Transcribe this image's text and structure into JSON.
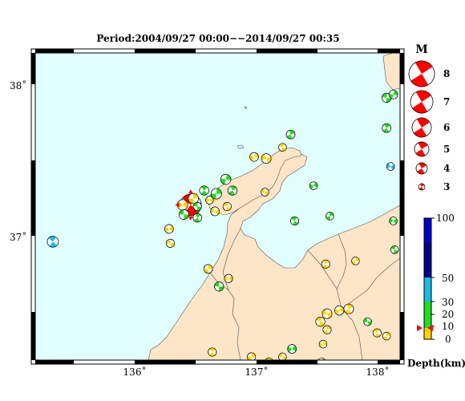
{
  "title": "Period:2004/09/27 00:00−−2014/09/27 00:35",
  "map": {
    "lat_labels": [
      "38˚",
      "37˚"
    ],
    "lon_labels": [
      "136˚",
      "137˚",
      "138˚"
    ],
    "lat_range": [
      36.25,
      38.17
    ],
    "lon_range": [
      135.5,
      138.2
    ]
  },
  "colors": {
    "sea": "#e2ffff",
    "land": "#fde5c7",
    "frame_black": "#000000",
    "frame_white": "#ffffff",
    "mech_red": "#ff0000",
    "depth_yellow": "#ffd400",
    "depth_green": "#22dd22",
    "depth_cyan": "#1fb9e8",
    "depth_blue": "#0000ff",
    "depth_navy": "#000088"
  },
  "legend_magnitude": {
    "header": "M",
    "items": [
      "8",
      "7",
      "6",
      "5",
      "4",
      "3"
    ]
  },
  "legend_depth": {
    "label": "Depth(km)",
    "ticks": [
      "100",
      "50",
      "30",
      "20",
      "10",
      "0"
    ]
  },
  "mechanisms": [
    {
      "lon": 136.65,
      "lat": 37.22,
      "mag": 6.9,
      "color": "red"
    },
    {
      "lon": 136.67,
      "lat": 37.26,
      "mag": 4.5,
      "color": "yellow"
    },
    {
      "lon": 136.59,
      "lat": 37.22,
      "mag": 4.6,
      "color": "yellow"
    },
    {
      "lon": 136.6,
      "lat": 37.16,
      "mag": 4.4,
      "color": "green"
    },
    {
      "lon": 136.75,
      "lat": 37.31,
      "mag": 4.3,
      "color": "green"
    },
    {
      "lon": 136.84,
      "lat": 37.29,
      "mag": 4.6,
      "color": "green"
    },
    {
      "lon": 136.79,
      "lat": 37.25,
      "mag": 4.0,
      "color": "yellow"
    },
    {
      "lon": 136.7,
      "lat": 37.21,
      "mag": 4.1,
      "color": "green"
    },
    {
      "lon": 136.7,
      "lat": 37.14,
      "mag": 4.2,
      "color": "green"
    },
    {
      "lon": 136.91,
      "lat": 37.38,
      "mag": 4.5,
      "color": "green"
    },
    {
      "lon": 136.83,
      "lat": 37.18,
      "mag": 4.2,
      "color": "yellow"
    },
    {
      "lon": 136.92,
      "lat": 37.21,
      "mag": 4.1,
      "color": "yellow"
    },
    {
      "lon": 136.96,
      "lat": 37.31,
      "mag": 4.3,
      "color": "green"
    },
    {
      "lon": 137.12,
      "lat": 37.52,
      "mag": 4.2,
      "color": "yellow"
    },
    {
      "lon": 137.21,
      "lat": 37.51,
      "mag": 4.4,
      "color": "yellow"
    },
    {
      "lon": 137.33,
      "lat": 37.58,
      "mag": 4.0,
      "color": "yellow"
    },
    {
      "lon": 137.39,
      "lat": 37.66,
      "mag": 4.2,
      "color": "green"
    },
    {
      "lon": 137.56,
      "lat": 37.34,
      "mag": 4.0,
      "color": "green"
    },
    {
      "lon": 137.2,
      "lat": 37.3,
      "mag": 4.0,
      "color": "yellow"
    },
    {
      "lon": 137.42,
      "lat": 37.12,
      "mag": 4.1,
      "color": "green"
    },
    {
      "lon": 137.68,
      "lat": 37.15,
      "mag": 4.0,
      "color": "green"
    },
    {
      "lon": 136.49,
      "lat": 37.07,
      "mag": 4.2,
      "color": "yellow"
    },
    {
      "lon": 136.5,
      "lat": 36.98,
      "mag": 4.1,
      "color": "yellow"
    },
    {
      "lon": 135.63,
      "lat": 36.99,
      "mag": 4.7,
      "color": "blue"
    },
    {
      "lon": 136.78,
      "lat": 36.82,
      "mag": 4.2,
      "color": "yellow"
    },
    {
      "lon": 136.93,
      "lat": 36.76,
      "mag": 4.1,
      "color": "yellow"
    },
    {
      "lon": 136.86,
      "lat": 36.71,
      "mag": 4.3,
      "color": "green"
    },
    {
      "lon": 137.65,
      "lat": 36.85,
      "mag": 4.1,
      "color": "yellow"
    },
    {
      "lon": 137.87,
      "lat": 36.87,
      "mag": 4.0,
      "color": "yellow"
    },
    {
      "lon": 138.15,
      "lat": 37.12,
      "mag": 4.0,
      "color": "green"
    },
    {
      "lon": 138.1,
      "lat": 37.89,
      "mag": 4.3,
      "color": "green"
    },
    {
      "lon": 138.1,
      "lat": 37.7,
      "mag": 4.2,
      "color": "green"
    },
    {
      "lon": 138.15,
      "lat": 37.91,
      "mag": 4.2,
      "color": "green"
    },
    {
      "lon": 138.13,
      "lat": 37.46,
      "mag": 4.0,
      "color": "blue"
    },
    {
      "lon": 138.16,
      "lat": 36.94,
      "mag": 4.0,
      "color": "green"
    },
    {
      "lon": 137.82,
      "lat": 36.57,
      "mag": 4.4,
      "color": "yellow"
    },
    {
      "lon": 137.75,
      "lat": 36.56,
      "mag": 4.3,
      "color": "yellow"
    },
    {
      "lon": 137.66,
      "lat": 36.54,
      "mag": 4.4,
      "color": "yellow"
    },
    {
      "lon": 137.61,
      "lat": 36.49,
      "mag": 4.3,
      "color": "yellow"
    },
    {
      "lon": 137.66,
      "lat": 36.44,
      "mag": 4.1,
      "color": "yellow"
    },
    {
      "lon": 137.63,
      "lat": 36.35,
      "mag": 4.0,
      "color": "yellow"
    },
    {
      "lon": 137.96,
      "lat": 36.49,
      "mag": 4.0,
      "color": "green"
    },
    {
      "lon": 138.03,
      "lat": 36.42,
      "mag": 4.1,
      "color": "yellow"
    },
    {
      "lon": 138.1,
      "lat": 36.4,
      "mag": 4.0,
      "color": "yellow"
    },
    {
      "lon": 137.4,
      "lat": 36.32,
      "mag": 4.2,
      "color": "green"
    },
    {
      "lon": 137.33,
      "lat": 36.27,
      "mag": 4.0,
      "color": "yellow"
    },
    {
      "lon": 137.23,
      "lat": 36.24,
      "mag": 4.0,
      "color": "yellow"
    },
    {
      "lon": 137.62,
      "lat": 36.23,
      "mag": 4.5,
      "color": "yellow"
    },
    {
      "lon": 137.66,
      "lat": 36.21,
      "mag": 4.1,
      "color": "yellow"
    },
    {
      "lon": 138.0,
      "lat": 36.18,
      "mag": 4.1,
      "color": "yellow"
    },
    {
      "lon": 136.81,
      "lat": 36.3,
      "mag": 4.1,
      "color": "yellow"
    },
    {
      "lon": 137.1,
      "lat": 36.27,
      "mag": 4.1,
      "color": "yellow"
    }
  ]
}
